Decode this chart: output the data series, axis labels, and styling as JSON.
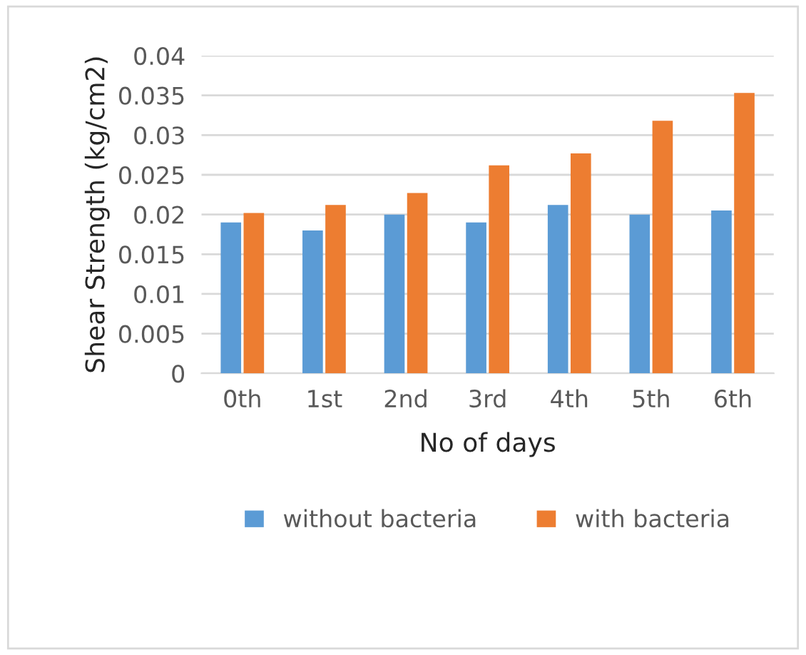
{
  "chart_data": {
    "type": "bar",
    "xlabel": "No of days",
    "ylabel": "Shear Strength (kg/cm2)",
    "categories": [
      "0th",
      "1st",
      "2nd",
      "3rd",
      "4th",
      "5th",
      "6th"
    ],
    "series": [
      {
        "name": "without bacteria",
        "color": "#5b9bd5",
        "values": [
          0.019,
          0.018,
          0.02,
          0.019,
          0.0212,
          0.02,
          0.0205
        ]
      },
      {
        "name": "with bacteria",
        "color": "#ed7d31",
        "values": [
          0.0202,
          0.0212,
          0.0227,
          0.0262,
          0.0277,
          0.0318,
          0.0353
        ]
      }
    ],
    "ylim": [
      0,
      0.04
    ],
    "yticks": [
      0,
      0.005,
      0.01,
      0.015,
      0.02,
      0.025,
      0.03,
      0.035,
      0.04
    ],
    "grid": "y",
    "legend": "bottom"
  }
}
